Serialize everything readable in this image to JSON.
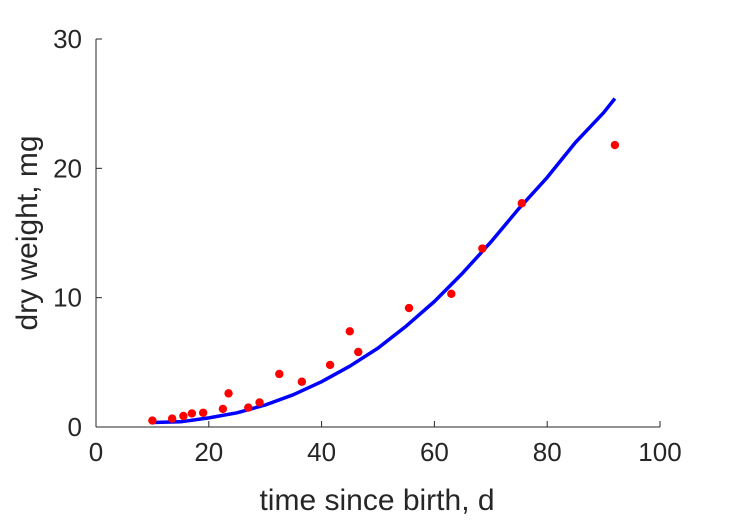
{
  "chart_data": {
    "type": "scatter",
    "title": "",
    "xlabel": "time since birth, d",
    "ylabel": "dry weight, mg",
    "xlim": [
      0,
      100
    ],
    "ylim": [
      0,
      30
    ],
    "xticks": [
      "0",
      "20",
      "40",
      "60",
      "80",
      "100"
    ],
    "yticks": [
      "0",
      "10",
      "20",
      "30"
    ],
    "grid": false,
    "legend": "none",
    "series": [
      {
        "kind": "scatter",
        "color": "#ff0000",
        "x": [
          10,
          13.5,
          15.5,
          17,
          19,
          22.5,
          23.5,
          27,
          29,
          32.5,
          36.5,
          41.5,
          45,
          46.5,
          55.5,
          63,
          68.5,
          75.5,
          92
        ],
        "y": [
          0.5,
          0.65,
          0.85,
          1.05,
          1.1,
          1.4,
          2.6,
          1.5,
          1.9,
          4.1,
          3.5,
          4.8,
          7.4,
          5.8,
          9.2,
          10.3,
          13.8,
          17.3,
          21.8
        ]
      },
      {
        "kind": "line",
        "color": "#0000ff",
        "x": [
          10,
          15,
          20,
          25,
          30,
          35,
          40,
          45,
          50,
          55,
          60,
          65,
          70,
          75,
          80,
          85,
          90,
          92
        ],
        "y": [
          0.35,
          0.4,
          0.7,
          1.1,
          1.7,
          2.5,
          3.5,
          4.7,
          6.1,
          7.8,
          9.7,
          11.9,
          14.3,
          16.9,
          19.3,
          22.0,
          24.3,
          25.4
        ]
      }
    ]
  }
}
